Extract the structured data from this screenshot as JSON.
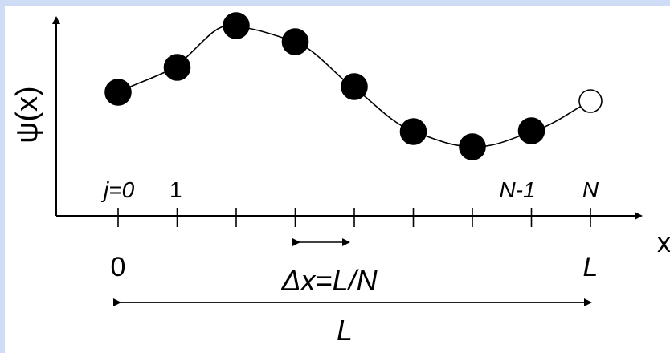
{
  "diagram": {
    "y_axis_label": "ψ(x)",
    "x_axis_label": "x",
    "index_labels": {
      "first": "j=0",
      "second": "1",
      "second_last": "N-1",
      "last": "N"
    },
    "position_labels": {
      "start": "0",
      "end": "L"
    },
    "spacing_label": "Δx=L/N",
    "span_label": "L",
    "point_count": 9,
    "filled_point_color": "#000000",
    "open_point_color": "#ffffff"
  }
}
